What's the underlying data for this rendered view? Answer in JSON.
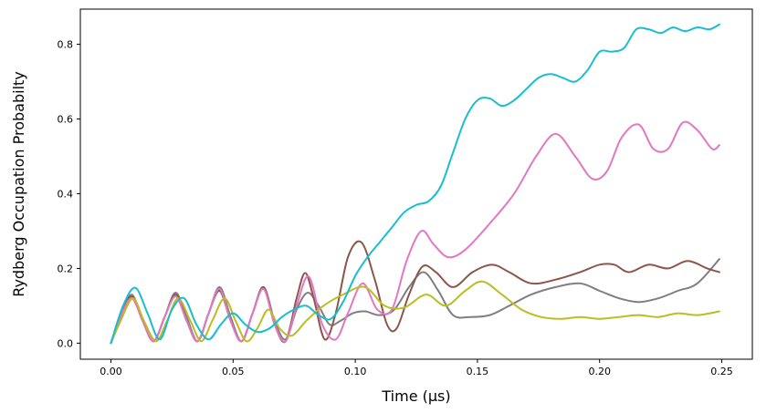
{
  "chart_data": {
    "type": "line",
    "title": "",
    "xlabel": "Time (µs)",
    "ylabel": "Rydberg Occupation Probabilty",
    "xlim": [
      -0.0125,
      0.2625
    ],
    "ylim": [
      -0.043,
      0.894
    ],
    "xticks": [
      0.0,
      0.05,
      0.1,
      0.15,
      0.2,
      0.25
    ],
    "xtick_labels": [
      "0.00",
      "0.05",
      "0.10",
      "0.15",
      "0.20",
      "0.25"
    ],
    "yticks": [
      0.0,
      0.2,
      0.4,
      0.6,
      0.8
    ],
    "ytick_labels": [
      "0.0",
      "0.2",
      "0.4",
      "0.6",
      "0.8"
    ],
    "grid": false,
    "legend": "none",
    "series": [
      {
        "color": "#7f7f7f",
        "x": [
          0.0,
          0.004,
          0.0085,
          0.013,
          0.0175,
          0.022,
          0.0265,
          0.031,
          0.0355,
          0.04,
          0.0445,
          0.049,
          0.0535,
          0.058,
          0.0625,
          0.067,
          0.0715,
          0.076,
          0.0805,
          0.085,
          0.0895,
          0.094,
          0.099,
          0.104,
          0.11,
          0.116,
          0.122,
          0.128,
          0.134,
          0.14,
          0.147,
          0.155,
          0.163,
          0.172,
          0.182,
          0.192,
          0.2,
          0.208,
          0.216,
          0.224,
          0.232,
          0.24,
          0.249
        ],
        "y": [
          0.0,
          0.07,
          0.13,
          0.06,
          0.005,
          0.07,
          0.135,
          0.07,
          0.005,
          0.08,
          0.15,
          0.07,
          0.005,
          0.08,
          0.15,
          0.06,
          0.01,
          0.09,
          0.135,
          0.1,
          0.05,
          0.06,
          0.08,
          0.085,
          0.075,
          0.09,
          0.15,
          0.19,
          0.14,
          0.075,
          0.07,
          0.075,
          0.1,
          0.13,
          0.15,
          0.16,
          0.14,
          0.12,
          0.11,
          0.12,
          0.14,
          0.16,
          0.225
        ]
      },
      {
        "color": "#8c564b",
        "x": [
          0.0,
          0.004,
          0.0085,
          0.013,
          0.0175,
          0.022,
          0.0265,
          0.031,
          0.0355,
          0.04,
          0.0445,
          0.049,
          0.0535,
          0.058,
          0.0625,
          0.067,
          0.0715,
          0.076,
          0.0795,
          0.083,
          0.0875,
          0.092,
          0.097,
          0.1025,
          0.108,
          0.113,
          0.117,
          0.122,
          0.1275,
          0.133,
          0.14,
          0.148,
          0.156,
          0.163,
          0.172,
          0.182,
          0.192,
          0.2,
          0.206,
          0.212,
          0.22,
          0.228,
          0.236,
          0.244,
          0.249
        ],
        "y": [
          0.0,
          0.07,
          0.125,
          0.06,
          0.005,
          0.07,
          0.13,
          0.06,
          0.005,
          0.08,
          0.14,
          0.06,
          0.005,
          0.08,
          0.15,
          0.05,
          0.005,
          0.12,
          0.188,
          0.12,
          0.01,
          0.08,
          0.23,
          0.27,
          0.17,
          0.05,
          0.04,
          0.13,
          0.205,
          0.19,
          0.15,
          0.19,
          0.21,
          0.19,
          0.16,
          0.17,
          0.19,
          0.21,
          0.21,
          0.19,
          0.21,
          0.2,
          0.22,
          0.2,
          0.19
        ]
      },
      {
        "color": "#e377c2",
        "x": [
          0.0,
          0.004,
          0.0085,
          0.013,
          0.0175,
          0.022,
          0.0265,
          0.031,
          0.0355,
          0.04,
          0.0445,
          0.049,
          0.0535,
          0.058,
          0.0625,
          0.067,
          0.0715,
          0.076,
          0.081,
          0.0865,
          0.092,
          0.097,
          0.103,
          0.109,
          0.115,
          0.121,
          0.127,
          0.132,
          0.138,
          0.145,
          0.155,
          0.165,
          0.174,
          0.182,
          0.19,
          0.197,
          0.203,
          0.209,
          0.216,
          0.222,
          0.228,
          0.234,
          0.24,
          0.246,
          0.249
        ],
        "y": [
          0.0,
          0.07,
          0.12,
          0.06,
          0.005,
          0.07,
          0.125,
          0.06,
          0.005,
          0.08,
          0.145,
          0.06,
          0.005,
          0.08,
          0.145,
          0.05,
          0.005,
          0.1,
          0.178,
          0.05,
          0.01,
          0.08,
          0.16,
          0.09,
          0.09,
          0.22,
          0.3,
          0.265,
          0.23,
          0.25,
          0.32,
          0.4,
          0.5,
          0.56,
          0.5,
          0.44,
          0.46,
          0.55,
          0.585,
          0.52,
          0.52,
          0.59,
          0.57,
          0.52,
          0.53
        ]
      },
      {
        "color": "#bcbd22",
        "x": [
          0.0,
          0.004,
          0.009,
          0.0135,
          0.0185,
          0.023,
          0.0275,
          0.0325,
          0.037,
          0.0415,
          0.0465,
          0.051,
          0.0555,
          0.06,
          0.0645,
          0.069,
          0.074,
          0.08,
          0.087,
          0.095,
          0.104,
          0.112,
          0.12,
          0.129,
          0.137,
          0.145,
          0.152,
          0.16,
          0.168,
          0.176,
          0.184,
          0.192,
          0.2,
          0.208,
          0.216,
          0.224,
          0.232,
          0.24,
          0.249
        ],
        "y": [
          0.0,
          0.06,
          0.12,
          0.06,
          0.005,
          0.06,
          0.12,
          0.06,
          0.005,
          0.06,
          0.12,
          0.06,
          0.005,
          0.04,
          0.09,
          0.04,
          0.02,
          0.06,
          0.1,
          0.13,
          0.15,
          0.1,
          0.095,
          0.13,
          0.1,
          0.14,
          0.165,
          0.13,
          0.09,
          0.07,
          0.065,
          0.07,
          0.065,
          0.07,
          0.075,
          0.07,
          0.08,
          0.075,
          0.085
        ]
      },
      {
        "color": "#17becf",
        "x": [
          0.0,
          0.005,
          0.01,
          0.015,
          0.02,
          0.025,
          0.03,
          0.035,
          0.04,
          0.045,
          0.05,
          0.055,
          0.06,
          0.065,
          0.07,
          0.075,
          0.08,
          0.085,
          0.09,
          0.095,
          0.1,
          0.105,
          0.11,
          0.115,
          0.12,
          0.125,
          0.13,
          0.135,
          0.14,
          0.145,
          0.15,
          0.155,
          0.16,
          0.165,
          0.17,
          0.175,
          0.18,
          0.185,
          0.19,
          0.195,
          0.2,
          0.205,
          0.21,
          0.215,
          0.22,
          0.225,
          0.23,
          0.235,
          0.24,
          0.245,
          0.249
        ],
        "y": [
          0.0,
          0.1,
          0.148,
          0.08,
          0.01,
          0.09,
          0.12,
          0.05,
          0.01,
          0.05,
          0.08,
          0.05,
          0.03,
          0.04,
          0.07,
          0.09,
          0.1,
          0.075,
          0.065,
          0.11,
          0.18,
          0.23,
          0.27,
          0.31,
          0.35,
          0.37,
          0.38,
          0.42,
          0.51,
          0.6,
          0.65,
          0.655,
          0.635,
          0.65,
          0.68,
          0.71,
          0.72,
          0.71,
          0.7,
          0.73,
          0.78,
          0.78,
          0.79,
          0.84,
          0.84,
          0.83,
          0.845,
          0.835,
          0.845,
          0.84,
          0.853
        ]
      }
    ]
  }
}
